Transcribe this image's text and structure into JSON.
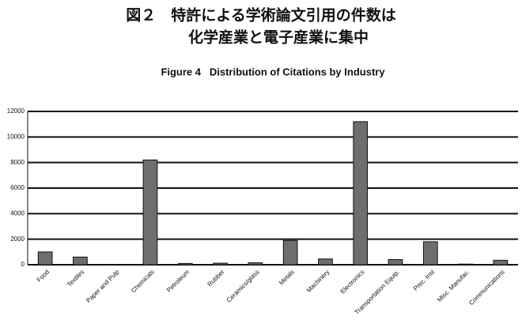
{
  "chart_data": {
    "type": "bar",
    "title_lines": [
      "図２　特許による学術論文引用の件数は",
      "化学産業と電子産業に集中"
    ],
    "subtitle": "Figure 4   Distribution of Citations by Industry",
    "categories": [
      "Food",
      "Textiles",
      "Paper and Pulp",
      "Chemicals",
      "Petroleum",
      "Rubber",
      "Ceramics/glass",
      "Metals",
      "Machinery",
      "Electronics",
      "Transportation Equip.",
      "Prec. Inst",
      "Misc. Manufac.",
      "Communications"
    ],
    "values": [
      1000,
      600,
      30,
      8200,
      100,
      120,
      150,
      1900,
      450,
      11200,
      400,
      1800,
      50,
      350
    ],
    "color": "#6e6e6e",
    "ylim": [
      0,
      12000
    ],
    "yticks": [
      0,
      2000,
      4000,
      6000,
      8000,
      10000,
      12000
    ],
    "grid": true
  }
}
